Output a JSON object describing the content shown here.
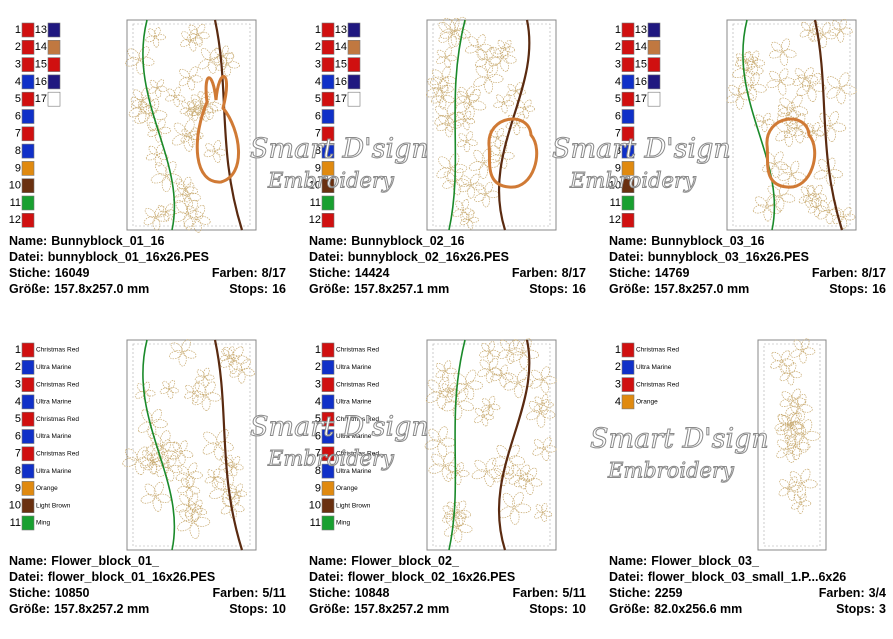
{
  "labels": {
    "name": "Name:",
    "file": "Datei:",
    "stitches": "Stiche:",
    "colors": "Farben:",
    "size": "Größe:",
    "stops": "Stops:"
  },
  "watermark": {
    "line1": "Smart D'sign",
    "line2": "Embroidery"
  },
  "cards": [
    {
      "name": "Bunnyblock_01_16",
      "file": "bunnyblock_01_16x26.PES",
      "stitches": "16049",
      "colors": "8/17",
      "size": "157.8x257.0 mm",
      "stops": "16",
      "threads": [
        {
          "num": "1",
          "color": "#d01010"
        },
        {
          "num": "2",
          "color": "#d01010"
        },
        {
          "num": "3",
          "color": "#d01010"
        },
        {
          "num": "4",
          "color": "#1030c8"
        },
        {
          "num": "5",
          "color": "#d01010"
        },
        {
          "num": "6",
          "color": "#1030c8"
        },
        {
          "num": "7",
          "color": "#d01010"
        },
        {
          "num": "8",
          "color": "#1030c8"
        },
        {
          "num": "9",
          "color": "#e08a10"
        },
        {
          "num": "10",
          "color": "#6a3010"
        },
        {
          "num": "11",
          "color": "#18a030"
        },
        {
          "num": "12",
          "color": "#d01010"
        },
        {
          "num": "13",
          "color": "#201880"
        },
        {
          "num": "14",
          "color": "#c07840"
        },
        {
          "num": "15",
          "color": "#d01010"
        },
        {
          "num": "16",
          "color": "#201880"
        },
        {
          "num": "17",
          "color": "#ffffff"
        }
      ]
    },
    {
      "name": "Bunnyblock_02_16",
      "file": "bunnyblock_02_16x26.PES",
      "stitches": "14424",
      "colors": "8/17",
      "size": "157.8x257.1 mm",
      "stops": "16",
      "threads": [
        {
          "num": "1",
          "color": "#d01010"
        },
        {
          "num": "2",
          "color": "#d01010"
        },
        {
          "num": "3",
          "color": "#d01010"
        },
        {
          "num": "4",
          "color": "#1030c8"
        },
        {
          "num": "5",
          "color": "#d01010"
        },
        {
          "num": "6",
          "color": "#1030c8"
        },
        {
          "num": "7",
          "color": "#d01010"
        },
        {
          "num": "8",
          "color": "#1030c8"
        },
        {
          "num": "9",
          "color": "#e08a10"
        },
        {
          "num": "10",
          "color": "#6a3010"
        },
        {
          "num": "11",
          "color": "#18a030"
        },
        {
          "num": "12",
          "color": "#d01010"
        },
        {
          "num": "13",
          "color": "#201880"
        },
        {
          "num": "14",
          "color": "#c07840"
        },
        {
          "num": "15",
          "color": "#d01010"
        },
        {
          "num": "16",
          "color": "#201880"
        },
        {
          "num": "17",
          "color": "#ffffff"
        }
      ]
    },
    {
      "name": "Bunnyblock_03_16",
      "file": "bunnyblock_03_16x26.PES",
      "stitches": "14769",
      "colors": "8/17",
      "size": "157.8x257.0 mm",
      "stops": "16",
      "threads": [
        {
          "num": "1",
          "color": "#d01010"
        },
        {
          "num": "2",
          "color": "#d01010"
        },
        {
          "num": "3",
          "color": "#d01010"
        },
        {
          "num": "4",
          "color": "#1030c8"
        },
        {
          "num": "5",
          "color": "#d01010"
        },
        {
          "num": "6",
          "color": "#1030c8"
        },
        {
          "num": "7",
          "color": "#d01010"
        },
        {
          "num": "8",
          "color": "#1030c8"
        },
        {
          "num": "9",
          "color": "#e08a10"
        },
        {
          "num": "10",
          "color": "#6a3010"
        },
        {
          "num": "11",
          "color": "#18a030"
        },
        {
          "num": "12",
          "color": "#d01010"
        },
        {
          "num": "13",
          "color": "#201880"
        },
        {
          "num": "14",
          "color": "#c07840"
        },
        {
          "num": "15",
          "color": "#d01010"
        },
        {
          "num": "16",
          "color": "#201880"
        },
        {
          "num": "17",
          "color": "#ffffff"
        }
      ]
    },
    {
      "name": "Flower_block_01_",
      "file": "flower_block_01_16x26.PES",
      "stitches": "10850",
      "colors": "5/11",
      "size": "157.8x257.2 mm",
      "stops": "10",
      "threads": [
        {
          "num": "1",
          "color": "#d01010",
          "label": "Christmas Red"
        },
        {
          "num": "2",
          "color": "#1030c8",
          "label": "Ultra Marine"
        },
        {
          "num": "3",
          "color": "#d01010",
          "label": "Christmas Red"
        },
        {
          "num": "4",
          "color": "#1030c8",
          "label": "Ultra Marine"
        },
        {
          "num": "5",
          "color": "#d01010",
          "label": "Christmas Red"
        },
        {
          "num": "6",
          "color": "#1030c8",
          "label": "Ultra Marine"
        },
        {
          "num": "7",
          "color": "#d01010",
          "label": "Christmas Red"
        },
        {
          "num": "8",
          "color": "#1030c8",
          "label": "Ultra Marine"
        },
        {
          "num": "9",
          "color": "#e08a10",
          "label": "Orange"
        },
        {
          "num": "10",
          "color": "#6a3010",
          "label": "Light Brown"
        },
        {
          "num": "11",
          "color": "#18a030",
          "label": "Ming"
        }
      ]
    },
    {
      "name": "Flower_block_02_",
      "file": "flower_block_02_16x26.PES",
      "stitches": "10848",
      "colors": "5/11",
      "size": "157.8x257.2 mm",
      "stops": "10",
      "threads": [
        {
          "num": "1",
          "color": "#d01010",
          "label": "Christmas Red"
        },
        {
          "num": "2",
          "color": "#1030c8",
          "label": "Ultra Marine"
        },
        {
          "num": "3",
          "color": "#d01010",
          "label": "Christmas Red"
        },
        {
          "num": "4",
          "color": "#1030c8",
          "label": "Ultra Marine"
        },
        {
          "num": "5",
          "color": "#d01010",
          "label": "Christmas Red"
        },
        {
          "num": "6",
          "color": "#1030c8",
          "label": "Ultra Marine"
        },
        {
          "num": "7",
          "color": "#d01010",
          "label": "Christmas Red"
        },
        {
          "num": "8",
          "color": "#1030c8",
          "label": "Ultra Marine"
        },
        {
          "num": "9",
          "color": "#e08a10",
          "label": "Orange"
        },
        {
          "num": "10",
          "color": "#6a3010",
          "label": "Light Brown"
        },
        {
          "num": "11",
          "color": "#18a030",
          "label": "Ming"
        }
      ]
    },
    {
      "name": "Flower_block_03_",
      "file": "flower_block_03_small_1.P...6x26",
      "stitches": "2259",
      "colors": "3/4",
      "size": "82.0x256.6 mm",
      "stops": "3",
      "threads": [
        {
          "num": "1",
          "color": "#d01010",
          "label": "Christmas Red"
        },
        {
          "num": "2",
          "color": "#1030c8",
          "label": "Ultra Marine"
        },
        {
          "num": "3",
          "color": "#d01010",
          "label": "Christmas Red"
        },
        {
          "num": "4",
          "color": "#e08a10",
          "label": "Orange"
        }
      ]
    }
  ]
}
